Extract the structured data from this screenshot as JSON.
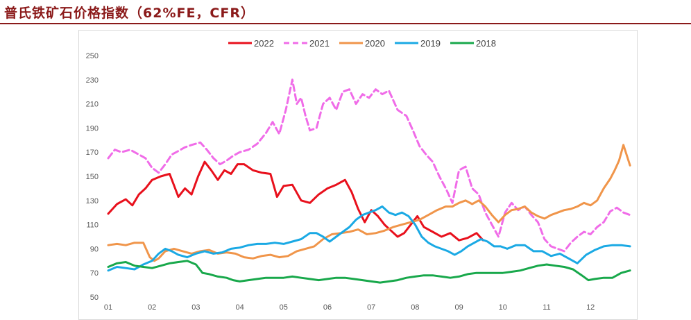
{
  "header": {
    "title": "普氏铁矿石价格指数（62%FE，CFR）"
  },
  "chart_data": {
    "type": "line",
    "title": "",
    "xlabel": "",
    "ylabel": "",
    "ylim": [
      50,
      250
    ],
    "yticks": [
      50,
      70,
      90,
      110,
      130,
      150,
      170,
      190,
      210,
      230,
      250
    ],
    "categories": [
      "01",
      "02",
      "03",
      "04",
      "05",
      "06",
      "07",
      "08",
      "09",
      "10",
      "11",
      "12"
    ],
    "grid": false,
    "legend_position": "top",
    "series": [
      {
        "name": "2022",
        "color": "#e8101c",
        "dash": "solid",
        "x": [
          1.0,
          1.2,
          1.4,
          1.55,
          1.7,
          1.85,
          2.0,
          2.2,
          2.4,
          2.6,
          2.75,
          2.9,
          3.05,
          3.2,
          3.35,
          3.5,
          3.65,
          3.8,
          3.95,
          4.1,
          4.3,
          4.5,
          4.7,
          4.85,
          5.0,
          5.2,
          5.4,
          5.6,
          5.8,
          6.0,
          6.2,
          6.4,
          6.55,
          6.7,
          6.85,
          7.0,
          7.15,
          7.3,
          7.45,
          7.6,
          7.75,
          7.9,
          8.05,
          8.2,
          8.4,
          8.6,
          8.8,
          9.0,
          9.2,
          9.4,
          9.55
        ],
        "values": [
          119,
          127,
          131,
          126,
          135,
          140,
          147,
          150,
          152,
          133,
          140,
          135,
          150,
          162,
          155,
          147,
          155,
          152,
          160,
          160,
          155,
          153,
          152,
          133,
          142,
          143,
          130,
          128,
          135,
          140,
          143,
          147,
          137,
          123,
          112,
          122,
          117,
          110,
          105,
          100,
          103,
          110,
          117,
          108,
          104,
          100,
          103,
          97,
          99,
          103,
          97
        ]
      },
      {
        "name": "2021",
        "color": "#f06ce8",
        "dash": "dashed",
        "x": [
          1.0,
          1.15,
          1.3,
          1.5,
          1.7,
          1.85,
          2.0,
          2.15,
          2.3,
          2.45,
          2.6,
          2.75,
          2.9,
          3.1,
          3.25,
          3.4,
          3.55,
          3.7,
          3.85,
          4.0,
          4.2,
          4.4,
          4.6,
          4.75,
          4.9,
          5.05,
          5.2,
          5.3,
          5.4,
          5.5,
          5.6,
          5.75,
          5.9,
          6.05,
          6.2,
          6.35,
          6.5,
          6.65,
          6.8,
          6.95,
          7.1,
          7.25,
          7.4,
          7.6,
          7.8,
          7.95,
          8.1,
          8.25,
          8.4,
          8.55,
          8.7,
          8.85,
          9.0,
          9.15,
          9.3,
          9.45,
          9.6,
          9.75,
          9.9,
          10.05,
          10.2,
          10.35,
          10.5,
          10.65,
          10.8,
          10.95,
          11.1,
          11.25,
          11.4,
          11.55,
          11.7,
          11.85,
          12.0,
          12.15,
          12.3,
          12.45,
          12.6,
          12.75,
          12.9
        ],
        "values": [
          165,
          172,
          170,
          172,
          168,
          165,
          157,
          153,
          160,
          168,
          171,
          174,
          176,
          178,
          172,
          165,
          160,
          163,
          167,
          170,
          172,
          177,
          186,
          195,
          185,
          205,
          230,
          210,
          215,
          200,
          188,
          190,
          210,
          215,
          205,
          220,
          222,
          210,
          218,
          215,
          222,
          218,
          221,
          205,
          200,
          188,
          175,
          168,
          162,
          150,
          140,
          128,
          155,
          158,
          140,
          135,
          120,
          110,
          100,
          120,
          128,
          122,
          125,
          118,
          112,
          98,
          92,
          90,
          88,
          95,
          100,
          104,
          102,
          108,
          112,
          121,
          124,
          120,
          118
        ]
      },
      {
        "name": "2020",
        "color": "#f0954a",
        "dash": "solid",
        "x": [
          1.0,
          1.2,
          1.4,
          1.6,
          1.8,
          1.95,
          2.05,
          2.15,
          2.3,
          2.5,
          2.7,
          2.9,
          3.1,
          3.3,
          3.5,
          3.7,
          3.9,
          4.1,
          4.3,
          4.5,
          4.7,
          4.9,
          5.1,
          5.3,
          5.5,
          5.7,
          5.9,
          6.1,
          6.3,
          6.5,
          6.7,
          6.9,
          7.1,
          7.3,
          7.5,
          7.7,
          7.9,
          8.1,
          8.3,
          8.5,
          8.7,
          8.85,
          9.0,
          9.15,
          9.3,
          9.45,
          9.6,
          9.75,
          9.9,
          10.05,
          10.2,
          10.35,
          10.5,
          10.65,
          10.8,
          10.95,
          11.1,
          11.25,
          11.4,
          11.55,
          11.7,
          11.85,
          12.0,
          12.15,
          12.3,
          12.45,
          12.55,
          12.65,
          12.75,
          12.9
        ],
        "values": [
          93,
          94,
          93,
          95,
          95,
          83,
          80,
          82,
          88,
          90,
          88,
          86,
          88,
          89,
          86,
          87,
          86,
          83,
          82,
          84,
          85,
          83,
          84,
          88,
          90,
          92,
          98,
          102,
          103,
          104,
          106,
          102,
          103,
          105,
          108,
          110,
          112,
          114,
          118,
          122,
          125,
          125,
          128,
          130,
          127,
          130,
          125,
          118,
          112,
          118,
          122,
          123,
          125,
          120,
          117,
          115,
          118,
          120,
          122,
          123,
          125,
          128,
          126,
          130,
          140,
          148,
          155,
          163,
          176,
          159
        ]
      },
      {
        "name": "2019",
        "color": "#1aa9e4",
        "dash": "solid",
        "x": [
          1.0,
          1.2,
          1.4,
          1.6,
          1.8,
          2.0,
          2.15,
          2.3,
          2.45,
          2.6,
          2.8,
          3.0,
          3.2,
          3.4,
          3.6,
          3.8,
          4.0,
          4.2,
          4.4,
          4.6,
          4.8,
          5.0,
          5.2,
          5.4,
          5.6,
          5.75,
          5.9,
          6.05,
          6.2,
          6.35,
          6.5,
          6.65,
          6.8,
          6.95,
          7.1,
          7.25,
          7.4,
          7.55,
          7.7,
          7.85,
          8.0,
          8.15,
          8.3,
          8.45,
          8.6,
          8.75,
          8.9,
          9.05,
          9.2,
          9.35,
          9.5,
          9.65,
          9.8,
          9.95,
          10.1,
          10.3,
          10.5,
          10.7,
          10.9,
          11.1,
          11.3,
          11.5,
          11.7,
          11.9,
          12.1,
          12.3,
          12.5,
          12.7,
          12.9
        ],
        "values": [
          72,
          75,
          74,
          73,
          77,
          80,
          86,
          90,
          88,
          85,
          83,
          86,
          88,
          86,
          87,
          90,
          91,
          93,
          94,
          94,
          95,
          94,
          96,
          98,
          103,
          103,
          100,
          96,
          100,
          104,
          108,
          114,
          118,
          120,
          122,
          125,
          120,
          118,
          120,
          117,
          110,
          100,
          95,
          92,
          90,
          88,
          85,
          88,
          92,
          95,
          98,
          96,
          92,
          92,
          90,
          93,
          93,
          88,
          88,
          84,
          86,
          82,
          78,
          85,
          89,
          92,
          93,
          93,
          92
        ]
      },
      {
        "name": "2018",
        "color": "#18a84b",
        "dash": "solid",
        "x": [
          1.0,
          1.2,
          1.4,
          1.6,
          1.8,
          2.0,
          2.2,
          2.4,
          2.6,
          2.8,
          3.0,
          3.15,
          3.3,
          3.5,
          3.7,
          3.85,
          4.0,
          4.2,
          4.4,
          4.6,
          4.8,
          5.0,
          5.2,
          5.4,
          5.6,
          5.8,
          6.0,
          6.2,
          6.4,
          6.6,
          6.8,
          7.0,
          7.2,
          7.4,
          7.6,
          7.8,
          8.0,
          8.2,
          8.4,
          8.6,
          8.8,
          9.0,
          9.2,
          9.4,
          9.6,
          9.8,
          10.0,
          10.2,
          10.4,
          10.6,
          10.8,
          11.0,
          11.2,
          11.4,
          11.6,
          11.8,
          11.95,
          12.1,
          12.3,
          12.5,
          12.7,
          12.9
        ],
        "values": [
          75,
          78,
          79,
          76,
          75,
          74,
          76,
          78,
          79,
          80,
          77,
          70,
          69,
          67,
          66,
          64,
          63,
          64,
          65,
          66,
          66,
          66,
          67,
          66,
          65,
          64,
          65,
          66,
          66,
          65,
          64,
          63,
          62,
          63,
          64,
          66,
          67,
          68,
          68,
          67,
          66,
          67,
          69,
          70,
          70,
          70,
          70,
          71,
          72,
          74,
          76,
          77,
          76,
          75,
          73,
          68,
          64,
          65,
          66,
          66,
          70,
          72
        ]
      }
    ]
  }
}
